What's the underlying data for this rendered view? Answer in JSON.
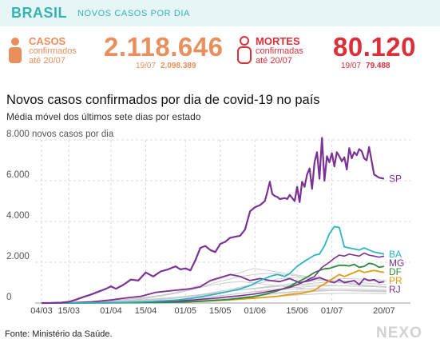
{
  "header": {
    "brand": "BRASIL",
    "section": "NOVOS CASOS POR DIA"
  },
  "cases": {
    "label_title": "CASOS",
    "label_line2": "confirmados",
    "label_line3": "até 20/07",
    "value": "2.118.646",
    "prev_date": "19/07",
    "prev_value": "2.098.389",
    "color": "#e98f5d"
  },
  "deaths": {
    "label_title": "MORTES",
    "label_line2": "confirmadas",
    "label_line3": "até 20/07",
    "value": "80.120",
    "prev_date": "19/07",
    "prev_value": "79.488",
    "color": "#d9303a"
  },
  "chart_title": "Novos casos confirmados por dia de covid-19 no país",
  "chart_subtitle": "Média móvel dos últimos sete dias por estado",
  "footer": {
    "source": "Fonte: Ministério da Saúde.",
    "logo": "NEXO"
  },
  "icons": {
    "cases": "person-icon",
    "deaths": "person-outline-icon"
  },
  "chart_data": {
    "type": "line",
    "ylabel": "novos casos por dia",
    "ylim": [
      0,
      8000
    ],
    "yticks": [
      0,
      2000,
      4000,
      6000,
      8000
    ],
    "ytick_labels": [
      "0",
      "2.000",
      "4.000",
      "6.000",
      "8.000"
    ],
    "xlim": [
      0,
      139
    ],
    "xticks": [
      0,
      11,
      28,
      42,
      58,
      72,
      86,
      103,
      117,
      138
    ],
    "xtick_labels": [
      "04/03",
      "15/03",
      "01/04",
      "15/04",
      "01/05",
      "15/05",
      "01/06",
      "15/06",
      "01/07",
      "20/07"
    ],
    "grid": true,
    "series": [
      {
        "name": "SP",
        "color": "#7b3294",
        "width": 2.2,
        "x": [
          0,
          4,
          8,
          11,
          14,
          17,
          20,
          23,
          26,
          28,
          30,
          33,
          36,
          39,
          42,
          45,
          48,
          51,
          54,
          56,
          58,
          60,
          62,
          64,
          66,
          68,
          70,
          72,
          74,
          76,
          78,
          80,
          82,
          84,
          86,
          88,
          90,
          91,
          92,
          93,
          94,
          95,
          96,
          98,
          99,
          100,
          102,
          103,
          104,
          105,
          106,
          107,
          108,
          109,
          110,
          111,
          112,
          113,
          114,
          115,
          116,
          117,
          118,
          119,
          120,
          121,
          122,
          123,
          124,
          125,
          126,
          127,
          128,
          129,
          130,
          131,
          132,
          134,
          136,
          138
        ],
        "y": [
          0,
          5,
          20,
          60,
          170,
          300,
          420,
          560,
          700,
          820,
          700,
          900,
          1150,
          1100,
          1500,
          1300,
          1550,
          1650,
          1800,
          1650,
          1700,
          1600,
          2100,
          2700,
          2800,
          2600,
          2500,
          2900,
          3000,
          3200,
          3250,
          3300,
          3600,
          4500,
          4700,
          4800,
          5000,
          5450,
          5950,
          5350,
          5250,
          5200,
          5100,
          5150,
          5100,
          5300,
          5000,
          5700,
          4950,
          5950,
          5700,
          6300,
          6600,
          5600,
          6900,
          7400,
          6100,
          8100,
          6000,
          7200,
          6900,
          7350,
          6700,
          7400,
          7200,
          6950,
          7150,
          6550,
          7600,
          7100,
          7400,
          7250,
          7550,
          7450,
          7100,
          7000,
          7650,
          6300,
          6150,
          6100
        ]
      },
      {
        "name": "MG",
        "color": "#7b3294",
        "width": 1.6,
        "x": [
          0,
          15,
          25,
          35,
          45,
          55,
          60,
          65,
          70,
          75,
          80,
          85,
          90,
          95,
          100,
          105,
          110,
          113,
          116,
          118,
          120,
          122,
          124,
          126,
          128,
          130,
          132,
          134,
          136,
          138
        ],
        "y": [
          0,
          5,
          15,
          30,
          60,
          100,
          140,
          190,
          240,
          300,
          360,
          430,
          530,
          640,
          760,
          1000,
          1300,
          1750,
          2000,
          2200,
          2350,
          2300,
          2400,
          2350,
          2300,
          2450,
          2350,
          2300,
          2250,
          2300
        ]
      },
      {
        "name": "BA",
        "color": "#2bb4c4",
        "width": 1.8,
        "x": [
          0,
          15,
          25,
          35,
          45,
          55,
          60,
          65,
          70,
          75,
          80,
          84,
          88,
          92,
          95,
          98,
          100,
          103,
          106,
          108,
          110,
          112,
          114,
          116,
          118,
          120,
          122,
          124,
          126,
          128,
          130,
          132,
          134,
          136,
          138
        ],
        "y": [
          0,
          5,
          15,
          30,
          80,
          150,
          230,
          330,
          430,
          560,
          700,
          850,
          1100,
          1300,
          1400,
          1300,
          1450,
          1800,
          2050,
          2200,
          2350,
          2400,
          2800,
          3400,
          3750,
          3700,
          2750,
          2700,
          2650,
          2600,
          2700,
          2600,
          2500,
          2450,
          2400
        ]
      },
      {
        "name": "PR",
        "color": "#e89a10",
        "width": 1.8,
        "x": [
          0,
          20,
          40,
          55,
          65,
          75,
          85,
          95,
          100,
          105,
          110,
          112,
          115,
          118,
          120,
          122,
          125,
          128,
          130,
          132,
          134,
          136,
          138
        ],
        "y": [
          0,
          5,
          20,
          50,
          90,
          150,
          230,
          330,
          420,
          480,
          620,
          800,
          1000,
          1250,
          1400,
          1300,
          1450,
          1600,
          1500,
          1550,
          1600,
          1550,
          1500
        ]
      },
      {
        "name": "DF",
        "color": "#2e8b3e",
        "width": 1.8,
        "x": [
          0,
          20,
          40,
          55,
          65,
          75,
          85,
          90,
          95,
          100,
          103,
          106,
          108,
          110,
          112,
          114,
          116,
          118,
          120,
          122,
          124,
          126,
          128,
          130,
          132,
          134,
          136,
          138
        ],
        "y": [
          0,
          5,
          15,
          40,
          90,
          170,
          300,
          420,
          600,
          820,
          1020,
          1200,
          1350,
          1500,
          1600,
          1680,
          1700,
          1780,
          1850,
          1850,
          1820,
          1900,
          1750,
          1800,
          1950,
          1900,
          1750,
          1800
        ]
      },
      {
        "name": "RJ",
        "color": "#7b3294",
        "width": 1.8,
        "x": [
          0,
          12,
          20,
          28,
          34,
          40,
          46,
          52,
          56,
          60,
          64,
          68,
          72,
          76,
          80,
          84,
          88,
          92,
          96,
          100,
          104,
          108,
          112,
          116,
          118,
          120,
          122,
          124,
          126,
          128,
          130,
          132,
          134,
          136,
          138
        ],
        "y": [
          0,
          15,
          60,
          150,
          250,
          330,
          520,
          600,
          650,
          700,
          800,
          1100,
          1250,
          1400,
          1300,
          1100,
          1200,
          1100,
          1050,
          1200,
          1000,
          1100,
          1250,
          1050,
          1000,
          1150,
          1000,
          1050,
          1100,
          900,
          1200,
          1100,
          1150,
          1000,
          1050
        ]
      }
    ],
    "background_series": [
      [
        0,
        0,
        10,
        40,
        80,
        120,
        160,
        230,
        300,
        380,
        500,
        700,
        900,
        1100,
        1300,
        1500,
        1700,
        1600,
        1500,
        1400,
        1300,
        1200,
        1100,
        1000,
        900,
        850,
        800
      ],
      [
        0,
        0,
        5,
        20,
        40,
        70,
        100,
        140,
        180,
        230,
        280,
        340,
        420,
        520,
        640,
        780,
        920,
        1060,
        1200,
        1250,
        1200,
        1150,
        1100,
        1050,
        1000,
        950,
        900
      ],
      [
        0,
        0,
        5,
        15,
        30,
        50,
        80,
        120,
        160,
        200,
        260,
        320,
        400,
        480,
        560,
        640,
        700,
        760,
        820,
        880,
        940,
        1000,
        1050,
        1080,
        1100,
        1080,
        1050
      ],
      [
        0,
        0,
        0,
        10,
        30,
        60,
        100,
        160,
        240,
        340,
        460,
        600,
        760,
        900,
        1000,
        1050,
        980,
        900,
        820,
        760,
        700,
        650,
        620,
        600,
        580,
        560,
        550
      ],
      [
        0,
        0,
        0,
        5,
        15,
        30,
        60,
        100,
        150,
        210,
        270,
        340,
        420,
        500,
        580,
        660,
        720,
        780,
        830,
        860,
        880,
        880,
        860,
        840,
        820,
        800,
        780
      ],
      [
        0,
        0,
        5,
        20,
        50,
        90,
        140,
        200,
        280,
        380,
        500,
        640,
        800,
        980,
        1150,
        1300,
        1400,
        1450,
        1420,
        1350,
        1250,
        1150,
        1050,
        950,
        880,
        820,
        760
      ],
      [
        0,
        0,
        0,
        5,
        10,
        20,
        40,
        70,
        110,
        160,
        220,
        290,
        380,
        470,
        560,
        640,
        720,
        800,
        880,
        960,
        1040,
        1120,
        1180,
        1200,
        1180,
        1150,
        1120
      ],
      [
        0,
        0,
        0,
        5,
        10,
        20,
        30,
        50,
        80,
        110,
        150,
        200,
        260,
        330,
        400,
        480,
        560,
        640,
        700,
        760,
        800,
        830,
        850,
        840,
        820,
        800,
        790
      ],
      [
        0,
        0,
        0,
        0,
        5,
        10,
        20,
        40,
        60,
        90,
        130,
        180,
        240,
        310,
        390,
        470,
        540,
        600,
        650,
        680,
        700,
        710,
        700,
        690,
        680,
        670,
        660
      ],
      [
        0,
        0,
        0,
        0,
        5,
        10,
        20,
        30,
        50,
        70,
        100,
        140,
        190,
        240,
        300,
        360,
        420,
        480,
        520,
        560,
        590,
        610,
        620,
        620,
        610,
        600,
        590
      ],
      [
        0,
        0,
        0,
        0,
        0,
        5,
        10,
        20,
        30,
        50,
        70,
        100,
        140,
        180,
        230,
        290,
        350,
        410,
        470,
        520,
        560,
        590,
        610,
        620,
        620,
        610,
        600
      ],
      [
        0,
        0,
        0,
        0,
        0,
        5,
        10,
        15,
        25,
        40,
        60,
        80,
        110,
        140,
        180,
        220,
        260,
        300,
        340,
        380,
        420,
        450,
        470,
        480,
        480,
        470,
        460
      ]
    ],
    "background_color": "#c9c9c9"
  }
}
